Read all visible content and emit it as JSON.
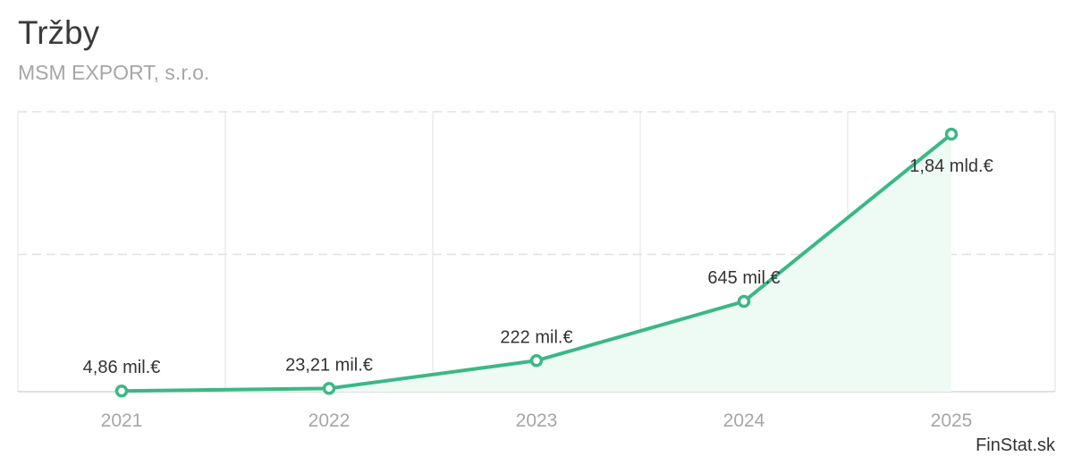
{
  "header": {
    "title": "Tržby",
    "subtitle": "MSM EXPORT, s.r.o."
  },
  "footer": {
    "credit": "FinStat.sk"
  },
  "colors": {
    "line": "#3bb885",
    "area": "#eefaf4",
    "grid": "#e0e0e0",
    "tick_label": "#a6a6a6",
    "data_label": "#333333"
  },
  "chart_data": {
    "type": "area",
    "title": "Tržby",
    "subtitle": "MSM EXPORT, s.r.o.",
    "categories": [
      "2021",
      "2022",
      "2023",
      "2024",
      "2025"
    ],
    "unit": "mil.€",
    "series": [
      {
        "values": [
          4.86,
          23.21,
          222,
          645,
          1840
        ],
        "labels": [
          "4,86 mil.€",
          "23,21 mil.€",
          "222 mil.€",
          "645 mil.€",
          "1,84 mld.€"
        ]
      }
    ],
    "ylim": [
      0,
      2000
    ],
    "grid": true,
    "legend": "none"
  }
}
